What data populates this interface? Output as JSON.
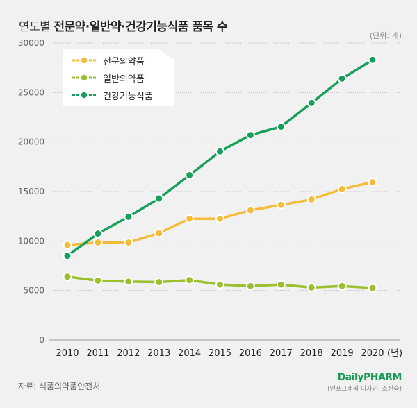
{
  "header": {
    "title_prefix": "연도별",
    "title_main": "전문약·일반약·건강기능식품 품목 수",
    "unit": "(단위: 개)"
  },
  "footer": {
    "source": "자료: 식품의약품안전처",
    "logo": "DailyPHARM",
    "credit": "(인포그래픽 디자인: 조진숙)"
  },
  "chart_data": {
    "type": "line",
    "title": "연도별 전문약·일반약·건강기능식품 품목 수",
    "x": [
      "2010",
      "2011",
      "2012",
      "2013",
      "2014",
      "2015",
      "2016",
      "2017",
      "2018",
      "2019",
      "2020"
    ],
    "x_suffix": "(년)",
    "ylim": [
      0,
      30000
    ],
    "yticks": [
      "0",
      "5000",
      "10000",
      "15000",
      "20000",
      "25000",
      "30000"
    ],
    "grid": true,
    "legend_position": "top-left",
    "series": [
      {
        "name": "전문의약품",
        "color": "#f3bd3a",
        "values": [
          9600,
          9850,
          9850,
          10800,
          12250,
          12250,
          13100,
          13650,
          14200,
          15250,
          15950
        ]
      },
      {
        "name": "일반의약품",
        "color": "#9cbf2e",
        "values": [
          6400,
          6000,
          5900,
          5850,
          6050,
          5600,
          5450,
          5600,
          5300,
          5450,
          5250
        ]
      },
      {
        "name": "건강기능식품",
        "color": "#14a05a",
        "values": [
          8500,
          10750,
          12450,
          14300,
          16650,
          19050,
          20700,
          21550,
          23950,
          26400,
          28300
        ]
      }
    ]
  }
}
